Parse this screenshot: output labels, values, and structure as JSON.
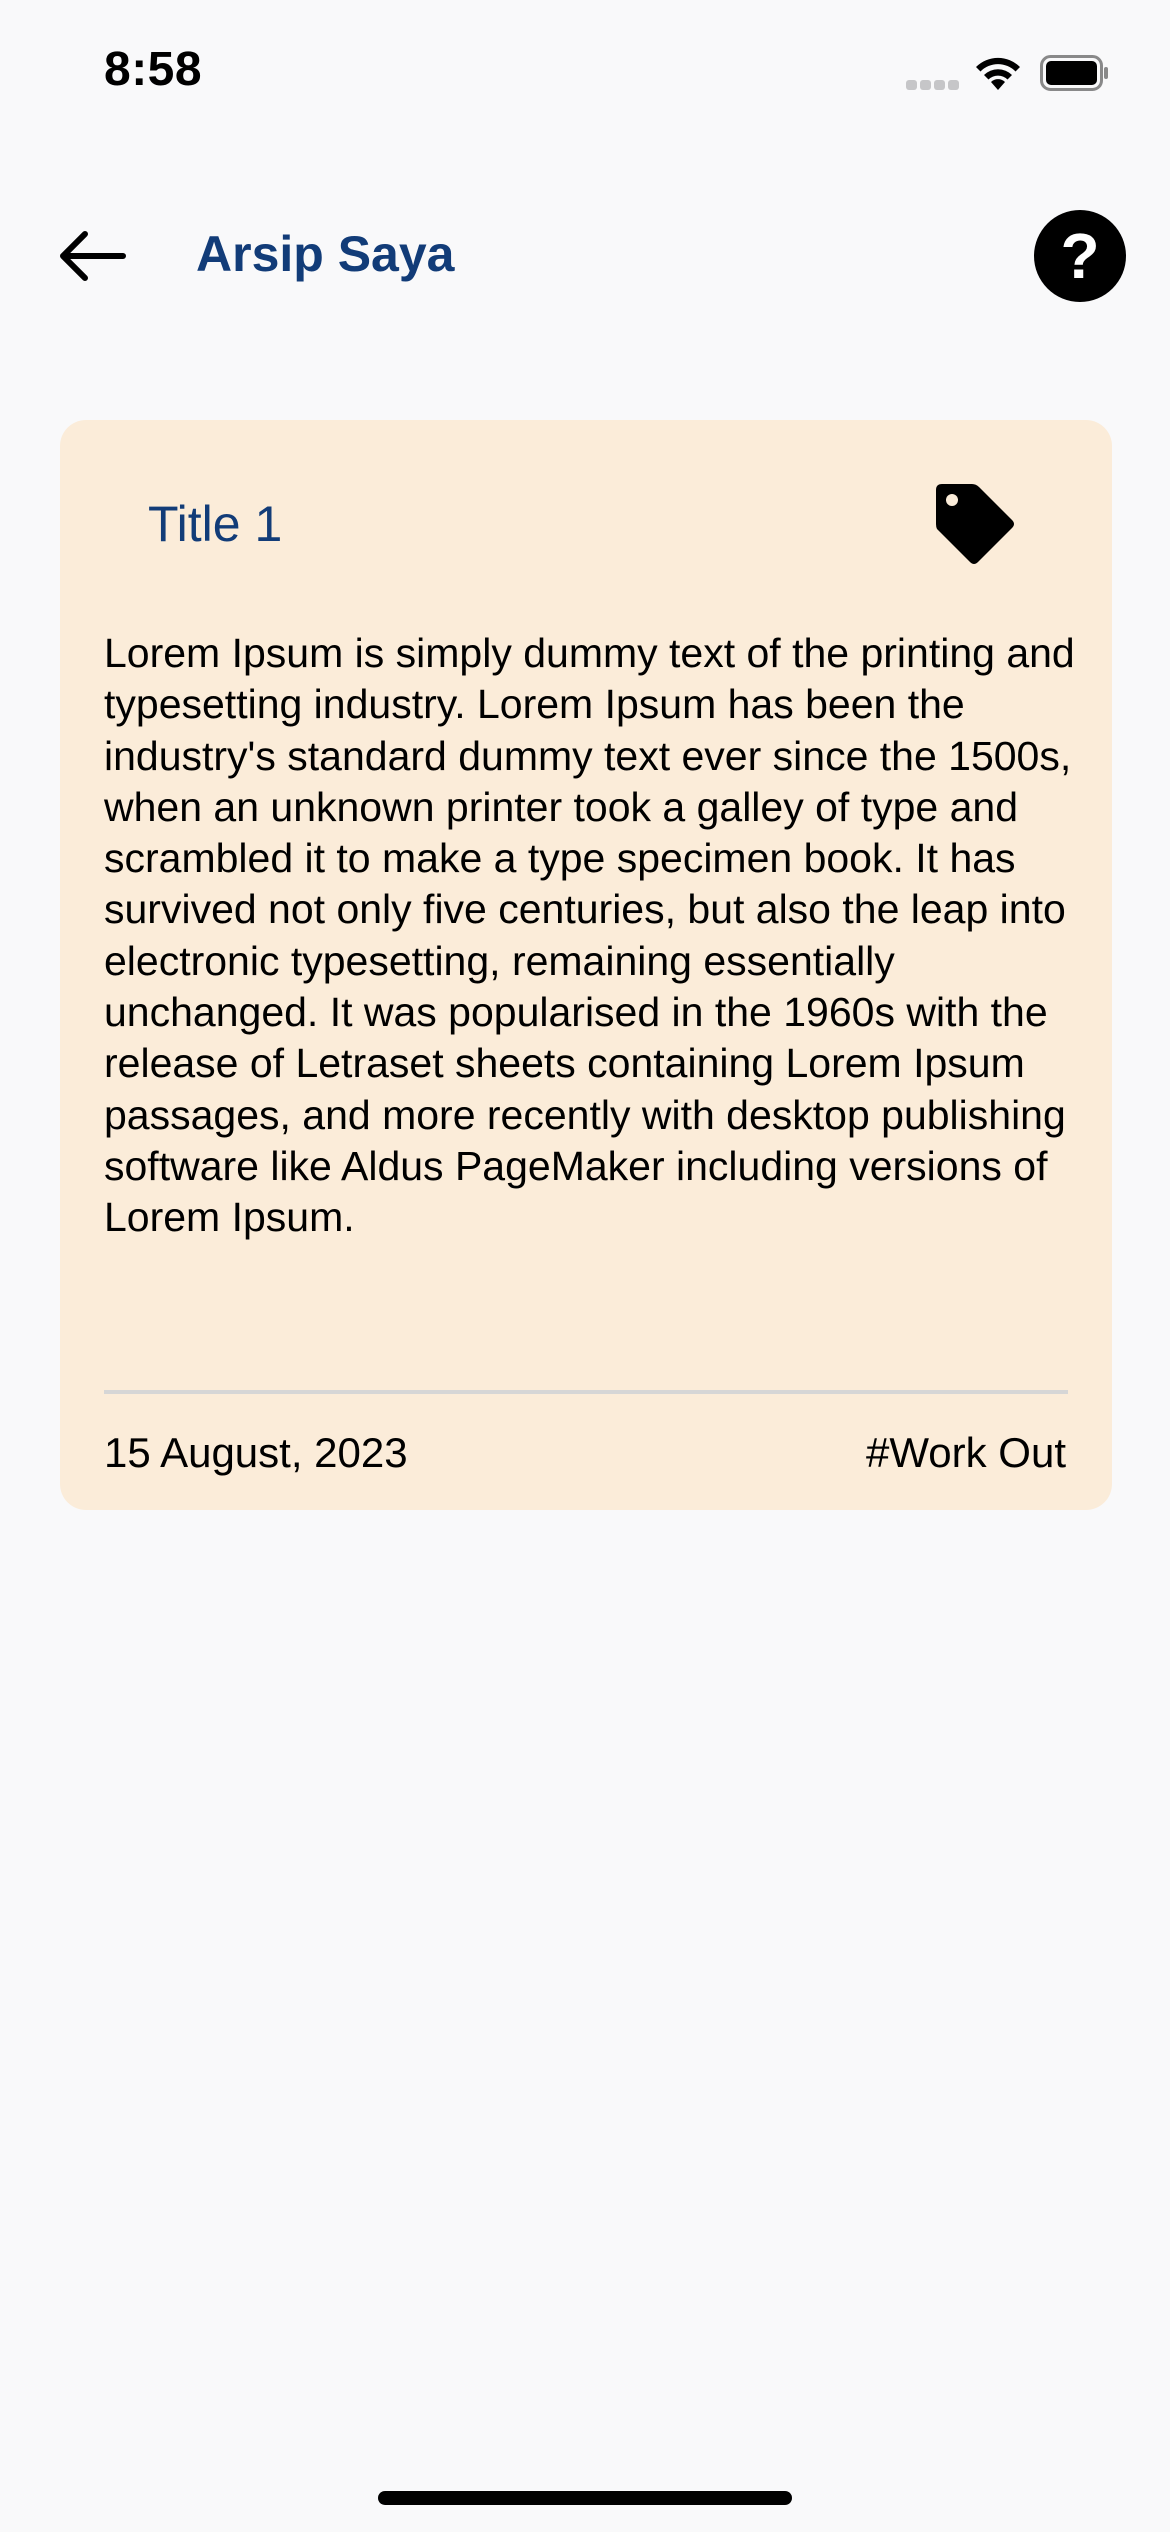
{
  "status_bar": {
    "time": "8:58",
    "signal_icon": "cellular-signal-icon",
    "wifi_icon": "wifi-icon",
    "battery_icon": "battery-icon"
  },
  "header": {
    "back_icon": "arrow-left-icon",
    "title": "Arsip Saya",
    "help_icon": "question-mark-icon",
    "help_label": "?"
  },
  "archive": {
    "items": [
      {
        "title": "Title 1",
        "tag_icon": "tag-icon",
        "body": "Lorem Ipsum is simply dummy text of the printing and typesetting industry. Lorem Ipsum has been the industry's standard dummy text ever since the 1500s, when an unknown printer took a galley of type and scrambled it to make a type specimen book. It has survived not only five centuries, but also the leap into electronic typesetting, remaining essentially unchanged. It was popularised in the 1960s with the release of Letraset sheets containing Lorem Ipsum passages, and more recently with desktop publishing software like Aldus PageMaker including versions of Lorem Ipsum.",
        "date": "15 August, 2023",
        "tag": "#Work Out"
      }
    ]
  },
  "colors": {
    "title_blue": "#123c78",
    "card_background": "#fbecd9",
    "page_background": "#f9f9fa"
  }
}
